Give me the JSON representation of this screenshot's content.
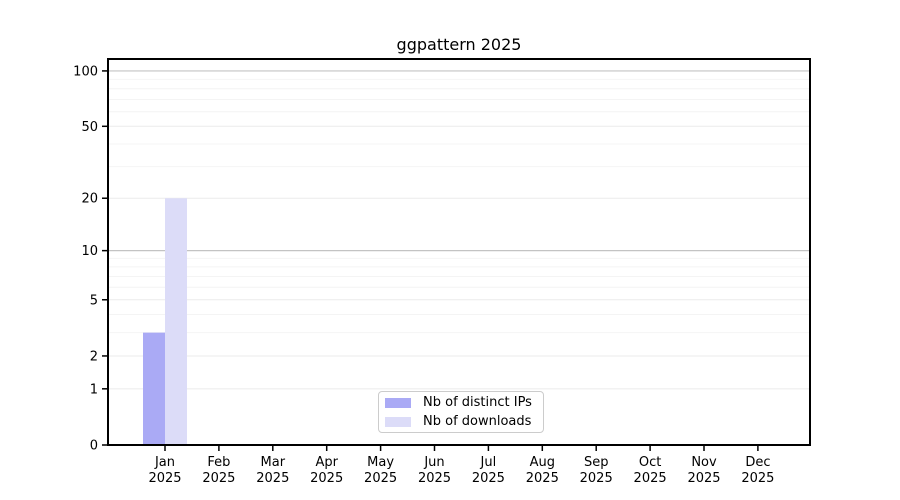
{
  "chart_data": {
    "type": "bar",
    "title": "ggpattern 2025",
    "categories": [
      "Jan",
      "Feb",
      "Mar",
      "Apr",
      "May",
      "Jun",
      "Jul",
      "Aug",
      "Sep",
      "Oct",
      "Nov",
      "Dec"
    ],
    "year_label": "2025",
    "series": [
      {
        "name": "Nb of distinct IPs",
        "color": "#aaaaf5",
        "values": [
          3,
          0,
          0,
          0,
          0,
          0,
          0,
          0,
          0,
          0,
          0,
          0
        ]
      },
      {
        "name": "Nb of downloads",
        "color": "#dcdcf8",
        "values": [
          20,
          0,
          0,
          0,
          0,
          0,
          0,
          0,
          0,
          0,
          0,
          0
        ]
      }
    ],
    "xlabel": "",
    "ylabel": "",
    "y_scale": "log1p",
    "ylim": [
      0,
      116
    ],
    "y_ticks": [
      0,
      1,
      2,
      5,
      10,
      20,
      50,
      100
    ],
    "y_gridlines_dark": [
      10,
      100
    ],
    "y_gridlines_light": [
      1,
      2,
      5,
      20,
      50
    ],
    "y_gridlines_minor": [
      3,
      4,
      6,
      7,
      8,
      9,
      30,
      40,
      60,
      70,
      80,
      90
    ],
    "legend_position": "inside-bottom-center",
    "grid": true,
    "colors": {
      "spine": "#000000",
      "grid_dark": "#c3c3c3",
      "grid_light": "#ebebeb",
      "grid_minor": "#f4f4f4",
      "legend_border": "#cccccc",
      "background": "#ffffff",
      "text": "#000000"
    }
  }
}
